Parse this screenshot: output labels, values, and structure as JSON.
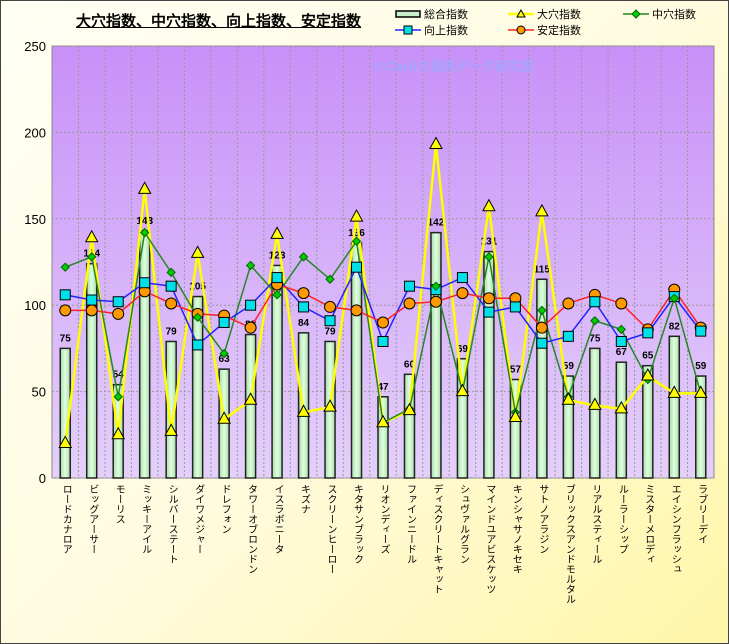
{
  "chart_data": {
    "type": "bar+line",
    "title": "大穴指数、中穴指数、向上指数、安定指数",
    "watermark": "©Caniの競馬データ研究室",
    "ylim": [
      0,
      250
    ],
    "yticks": [
      0,
      50,
      100,
      150,
      200,
      250
    ],
    "grid": true,
    "legend_position": "top-right",
    "categories": [
      "ロードカナロア",
      "ビッグアーサー",
      "モーリス",
      "ミッキーアイル",
      "シルバーステート",
      "ダイワメジャー",
      "ドレフォン",
      "タワーオブロンドン",
      "イスラボニータ",
      "キズナ",
      "スクリーンヒーロー",
      "キタサンブラック",
      "リオンディーズ",
      "ファインニードル",
      "ディスクリートキャット",
      "シュヴァルグラン",
      "マインドユアビスケッツ",
      "キンシャサノキセキ",
      "サトノアラジン",
      "ブリックスアンドモルタル",
      "リアルスティール",
      "ルーラーシップ",
      "ミスターメロディ",
      "エイシンフラッシュ",
      "ラブリーデイ"
    ],
    "series": [
      {
        "name": "総合指数",
        "kind": "bar",
        "color": "#c8f0c8",
        "values": [
          75,
          124,
          54,
          143,
          79,
          105,
          63,
          83,
          123,
          84,
          79,
          136,
          47,
          60,
          142,
          69,
          131,
          57,
          115,
          59,
          75,
          67,
          65,
          82,
          59
        ]
      },
      {
        "name": "大穴指数",
        "kind": "line",
        "marker": "triangle",
        "color": "#ffff00",
        "values": [
          20,
          139,
          25,
          167,
          27,
          130,
          34,
          45,
          141,
          38,
          41,
          151,
          32,
          39,
          193,
          50,
          157,
          35,
          154,
          45,
          42,
          40,
          59,
          49,
          49
        ]
      },
      {
        "name": "中穴指数",
        "kind": "line",
        "marker": "diamond",
        "color": "#228822",
        "values": [
          122,
          128,
          47,
          142,
          119,
          93,
          72,
          123,
          106,
          128,
          115,
          137,
          32,
          40,
          111,
          50,
          128,
          38,
          97,
          47,
          91,
          86,
          57,
          104,
          49
        ]
      },
      {
        "name": "向上指数",
        "kind": "line",
        "marker": "square",
        "color": "#2222ff",
        "values": [
          106,
          103,
          102,
          113,
          111,
          77,
          90,
          100,
          116,
          99,
          91,
          122,
          79,
          111,
          109,
          116,
          96,
          99,
          78,
          82,
          102,
          79,
          84,
          105,
          85
        ]
      },
      {
        "name": "安定指数",
        "kind": "line",
        "marker": "circle",
        "color": "#ff2222",
        "values": [
          97,
          97,
          95,
          108,
          101,
          95,
          94,
          87,
          112,
          107,
          99,
          97,
          90,
          101,
          102,
          107,
          104,
          104,
          87,
          101,
          106,
          101,
          86,
          109,
          87
        ]
      }
    ]
  }
}
